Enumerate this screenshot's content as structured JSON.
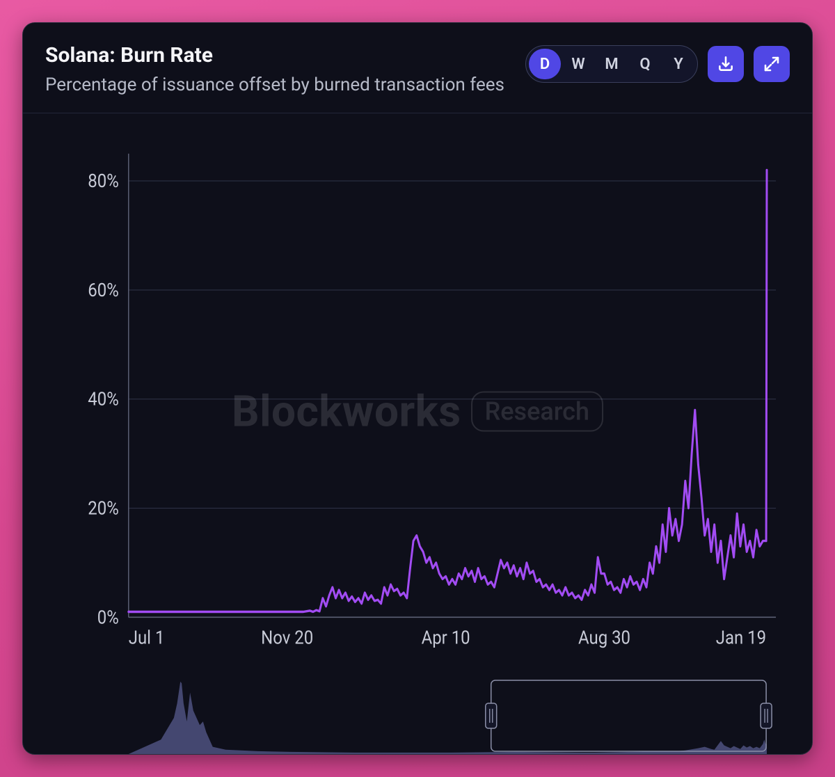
{
  "header": {
    "title": "Solana: Burn Rate",
    "subtitle": "Percentage of issuance offset by burned transaction fees"
  },
  "controls": {
    "timeframes": [
      {
        "label": "D",
        "active": true
      },
      {
        "label": "W",
        "active": false
      },
      {
        "label": "M",
        "active": false
      },
      {
        "label": "Q",
        "active": false
      },
      {
        "label": "Y",
        "active": false
      }
    ],
    "download_icon": "download-icon",
    "expand_icon": "expand-icon"
  },
  "watermark": {
    "main": "Blockworks",
    "pill": "Research"
  },
  "chart": {
    "type": "line",
    "ylim": [
      0,
      85
    ],
    "yticks": [
      0,
      20,
      40,
      60,
      80
    ],
    "ytick_suffix": "%",
    "xticks": [
      "Jul 1",
      "Nov 20",
      "Apr 10",
      "Aug 30",
      "Jan 19"
    ],
    "xtick_positions": [
      0.0,
      0.245,
      0.49,
      0.735,
      0.985
    ],
    "line_color": "#a24cf3",
    "line_width": 3,
    "grid_color": "#2c3045",
    "axis_color": "#5b5f74",
    "background_color": "#0e0f1a",
    "label_fontsize": 24,
    "label_color": "#c7cad6",
    "series": [
      [
        0.0,
        1.0
      ],
      [
        0.01,
        1.0
      ],
      [
        0.02,
        1.0
      ],
      [
        0.03,
        1.0
      ],
      [
        0.04,
        1.0
      ],
      [
        0.05,
        1.0
      ],
      [
        0.06,
        1.0
      ],
      [
        0.07,
        1.0
      ],
      [
        0.08,
        1.0
      ],
      [
        0.09,
        1.0
      ],
      [
        0.1,
        1.0
      ],
      [
        0.11,
        1.0
      ],
      [
        0.12,
        1.0
      ],
      [
        0.13,
        1.0
      ],
      [
        0.14,
        1.0
      ],
      [
        0.15,
        1.0
      ],
      [
        0.16,
        1.0
      ],
      [
        0.17,
        1.0
      ],
      [
        0.18,
        1.0
      ],
      [
        0.19,
        1.0
      ],
      [
        0.2,
        1.0
      ],
      [
        0.21,
        1.0
      ],
      [
        0.22,
        1.0
      ],
      [
        0.23,
        1.0
      ],
      [
        0.24,
        1.0
      ],
      [
        0.25,
        1.0
      ],
      [
        0.26,
        1.0
      ],
      [
        0.27,
        1.0
      ],
      [
        0.28,
        1.2
      ],
      [
        0.285,
        1.0
      ],
      [
        0.29,
        1.3
      ],
      [
        0.295,
        1.1
      ],
      [
        0.3,
        3.5
      ],
      [
        0.305,
        2.0
      ],
      [
        0.31,
        4.0
      ],
      [
        0.315,
        5.5
      ],
      [
        0.32,
        3.5
      ],
      [
        0.325,
        5.0
      ],
      [
        0.33,
        3.5
      ],
      [
        0.335,
        4.5
      ],
      [
        0.34,
        3.0
      ],
      [
        0.345,
        3.8
      ],
      [
        0.35,
        2.8
      ],
      [
        0.355,
        3.5
      ],
      [
        0.36,
        2.5
      ],
      [
        0.365,
        4.5
      ],
      [
        0.37,
        3.2
      ],
      [
        0.375,
        4.0
      ],
      [
        0.38,
        3.0
      ],
      [
        0.385,
        3.2
      ],
      [
        0.39,
        2.5
      ],
      [
        0.395,
        5.5
      ],
      [
        0.4,
        4.0
      ],
      [
        0.405,
        6.0
      ],
      [
        0.41,
        4.8
      ],
      [
        0.415,
        5.2
      ],
      [
        0.42,
        4.0
      ],
      [
        0.425,
        4.5
      ],
      [
        0.43,
        3.5
      ],
      [
        0.435,
        9.0
      ],
      [
        0.44,
        14.0
      ],
      [
        0.445,
        15.0
      ],
      [
        0.45,
        13.0
      ],
      [
        0.455,
        12.0
      ],
      [
        0.46,
        10.0
      ],
      [
        0.465,
        11.0
      ],
      [
        0.47,
        9.0
      ],
      [
        0.475,
        10.0
      ],
      [
        0.48,
        8.0
      ],
      [
        0.485,
        7.0
      ],
      [
        0.49,
        7.5
      ],
      [
        0.495,
        6.0
      ],
      [
        0.5,
        7.0
      ],
      [
        0.505,
        6.0
      ],
      [
        0.51,
        8.0
      ],
      [
        0.515,
        7.0
      ],
      [
        0.52,
        9.0
      ],
      [
        0.525,
        7.5
      ],
      [
        0.53,
        8.5
      ],
      [
        0.535,
        6.5
      ],
      [
        0.54,
        9.0
      ],
      [
        0.545,
        7.0
      ],
      [
        0.55,
        7.5
      ],
      [
        0.555,
        6.0
      ],
      [
        0.56,
        6.5
      ],
      [
        0.565,
        5.5
      ],
      [
        0.57,
        8.0
      ],
      [
        0.575,
        10.5
      ],
      [
        0.58,
        9.0
      ],
      [
        0.585,
        10.0
      ],
      [
        0.59,
        8.0
      ],
      [
        0.595,
        9.5
      ],
      [
        0.6,
        7.5
      ],
      [
        0.605,
        9.0
      ],
      [
        0.61,
        7.0
      ],
      [
        0.615,
        10.0
      ],
      [
        0.62,
        8.0
      ],
      [
        0.625,
        8.5
      ],
      [
        0.63,
        6.5
      ],
      [
        0.635,
        7.0
      ],
      [
        0.64,
        5.5
      ],
      [
        0.645,
        6.0
      ],
      [
        0.65,
        5.0
      ],
      [
        0.655,
        6.0
      ],
      [
        0.66,
        4.5
      ],
      [
        0.665,
        5.0
      ],
      [
        0.67,
        4.0
      ],
      [
        0.675,
        5.5
      ],
      [
        0.68,
        4.0
      ],
      [
        0.685,
        4.5
      ],
      [
        0.69,
        3.5
      ],
      [
        0.695,
        4.0
      ],
      [
        0.7,
        3.2
      ],
      [
        0.705,
        5.0
      ],
      [
        0.71,
        4.0
      ],
      [
        0.715,
        6.0
      ],
      [
        0.72,
        4.5
      ],
      [
        0.725,
        11.0
      ],
      [
        0.73,
        8.0
      ],
      [
        0.735,
        8.0
      ],
      [
        0.74,
        6.0
      ],
      [
        0.745,
        6.5
      ],
      [
        0.75,
        5.0
      ],
      [
        0.755,
        5.5
      ],
      [
        0.76,
        4.5
      ],
      [
        0.765,
        7.0
      ],
      [
        0.77,
        5.5
      ],
      [
        0.775,
        7.5
      ],
      [
        0.78,
        6.0
      ],
      [
        0.785,
        6.5
      ],
      [
        0.79,
        5.0
      ],
      [
        0.795,
        7.0
      ],
      [
        0.8,
        5.5
      ],
      [
        0.805,
        10.0
      ],
      [
        0.81,
        8.0
      ],
      [
        0.815,
        13.0
      ],
      [
        0.82,
        10.0
      ],
      [
        0.825,
        17.0
      ],
      [
        0.83,
        12.0
      ],
      [
        0.835,
        20.0
      ],
      [
        0.84,
        15.0
      ],
      [
        0.845,
        18.0
      ],
      [
        0.85,
        14.0
      ],
      [
        0.855,
        17.0
      ],
      [
        0.86,
        25.0
      ],
      [
        0.865,
        20.0
      ],
      [
        0.87,
        30.0
      ],
      [
        0.875,
        38.0
      ],
      [
        0.88,
        28.0
      ],
      [
        0.885,
        22.0
      ],
      [
        0.89,
        15.0
      ],
      [
        0.895,
        18.0
      ],
      [
        0.9,
        12.0
      ],
      [
        0.905,
        17.0
      ],
      [
        0.91,
        10.0
      ],
      [
        0.915,
        14.0
      ],
      [
        0.92,
        7.0
      ],
      [
        0.925,
        11.0
      ],
      [
        0.93,
        15.0
      ],
      [
        0.935,
        11.0
      ],
      [
        0.94,
        19.0
      ],
      [
        0.945,
        13.0
      ],
      [
        0.95,
        17.0
      ],
      [
        0.955,
        12.0
      ],
      [
        0.96,
        14.0
      ],
      [
        0.965,
        11.0
      ],
      [
        0.97,
        16.0
      ],
      [
        0.975,
        13.0
      ],
      [
        0.98,
        14.0
      ],
      [
        0.985,
        14.0
      ],
      [
        0.986,
        82.0
      ]
    ]
  },
  "brush": {
    "type": "area",
    "fill_color": "#4a4e7a",
    "border_color": "#8b8fa8",
    "handle_color": "#8b8fa8",
    "window_start": 0.56,
    "window_end": 0.985,
    "series": [
      [
        0.0,
        0.0
      ],
      [
        0.05,
        20
      ],
      [
        0.06,
        35
      ],
      [
        0.07,
        50
      ],
      [
        0.075,
        70
      ],
      [
        0.08,
        100
      ],
      [
        0.082,
        98
      ],
      [
        0.085,
        70
      ],
      [
        0.09,
        45
      ],
      [
        0.095,
        85
      ],
      [
        0.1,
        60
      ],
      [
        0.105,
        50
      ],
      [
        0.11,
        40
      ],
      [
        0.115,
        45
      ],
      [
        0.12,
        30
      ],
      [
        0.13,
        10
      ],
      [
        0.15,
        6
      ],
      [
        0.2,
        4
      ],
      [
        0.25,
        3
      ],
      [
        0.3,
        2.5
      ],
      [
        0.35,
        2
      ],
      [
        0.4,
        2
      ],
      [
        0.45,
        2
      ],
      [
        0.5,
        2
      ],
      [
        0.55,
        2.5
      ],
      [
        0.6,
        3
      ],
      [
        0.65,
        2.5
      ],
      [
        0.7,
        2
      ],
      [
        0.72,
        2
      ],
      [
        0.75,
        2.5
      ],
      [
        0.78,
        3
      ],
      [
        0.8,
        3.5
      ],
      [
        0.82,
        4
      ],
      [
        0.84,
        3.5
      ],
      [
        0.86,
        5
      ],
      [
        0.88,
        8
      ],
      [
        0.89,
        10
      ],
      [
        0.9,
        7
      ],
      [
        0.905,
        6
      ],
      [
        0.91,
        12
      ],
      [
        0.915,
        18
      ],
      [
        0.92,
        12
      ],
      [
        0.925,
        10
      ],
      [
        0.93,
        8
      ],
      [
        0.935,
        11
      ],
      [
        0.94,
        9
      ],
      [
        0.945,
        7
      ],
      [
        0.95,
        12
      ],
      [
        0.955,
        9
      ],
      [
        0.96,
        11
      ],
      [
        0.965,
        8
      ],
      [
        0.97,
        10
      ],
      [
        0.975,
        8
      ],
      [
        0.98,
        14
      ],
      [
        0.982,
        20
      ],
      [
        0.984,
        14
      ],
      [
        0.985,
        14
      ],
      [
        0.986,
        14
      ]
    ]
  },
  "colors": {
    "page_bg_top": "#e85aa3",
    "page_bg_bottom": "#c84088",
    "card_bg": "#0e0f1a",
    "card_border": "#2a2d3d",
    "divider": "#23263a",
    "title_color": "#f4f4f7",
    "subtitle_color": "#b7bbc9",
    "toggle_border": "#3a3f5c",
    "toggle_bg": "#13152a",
    "toggle_text": "#d0d3e0",
    "accent": "#5047e5"
  }
}
